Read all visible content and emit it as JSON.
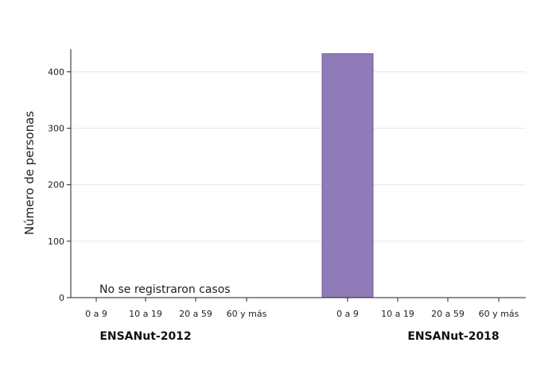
{
  "chart_data": {
    "type": "bar",
    "ylabel": "Número de personas",
    "xlabel": "",
    "ylim": [
      0,
      440
    ],
    "yticks": [
      0,
      100,
      200,
      300,
      400
    ],
    "grid": true,
    "bar_color": "#8e7bb8",
    "groups": [
      {
        "name": "ENSANut-2012",
        "categories": [
          "0 a 9",
          "10 a 19",
          "20 a 59",
          "60 y más"
        ],
        "values": [
          0,
          0,
          0,
          0
        ],
        "annotation": "No se registraron casos"
      },
      {
        "name": "ENSANut-2018",
        "categories": [
          "0 a 9",
          "10 a 19",
          "20 a 59",
          "60 y más"
        ],
        "values": [
          432,
          0,
          0,
          0
        ]
      }
    ]
  }
}
